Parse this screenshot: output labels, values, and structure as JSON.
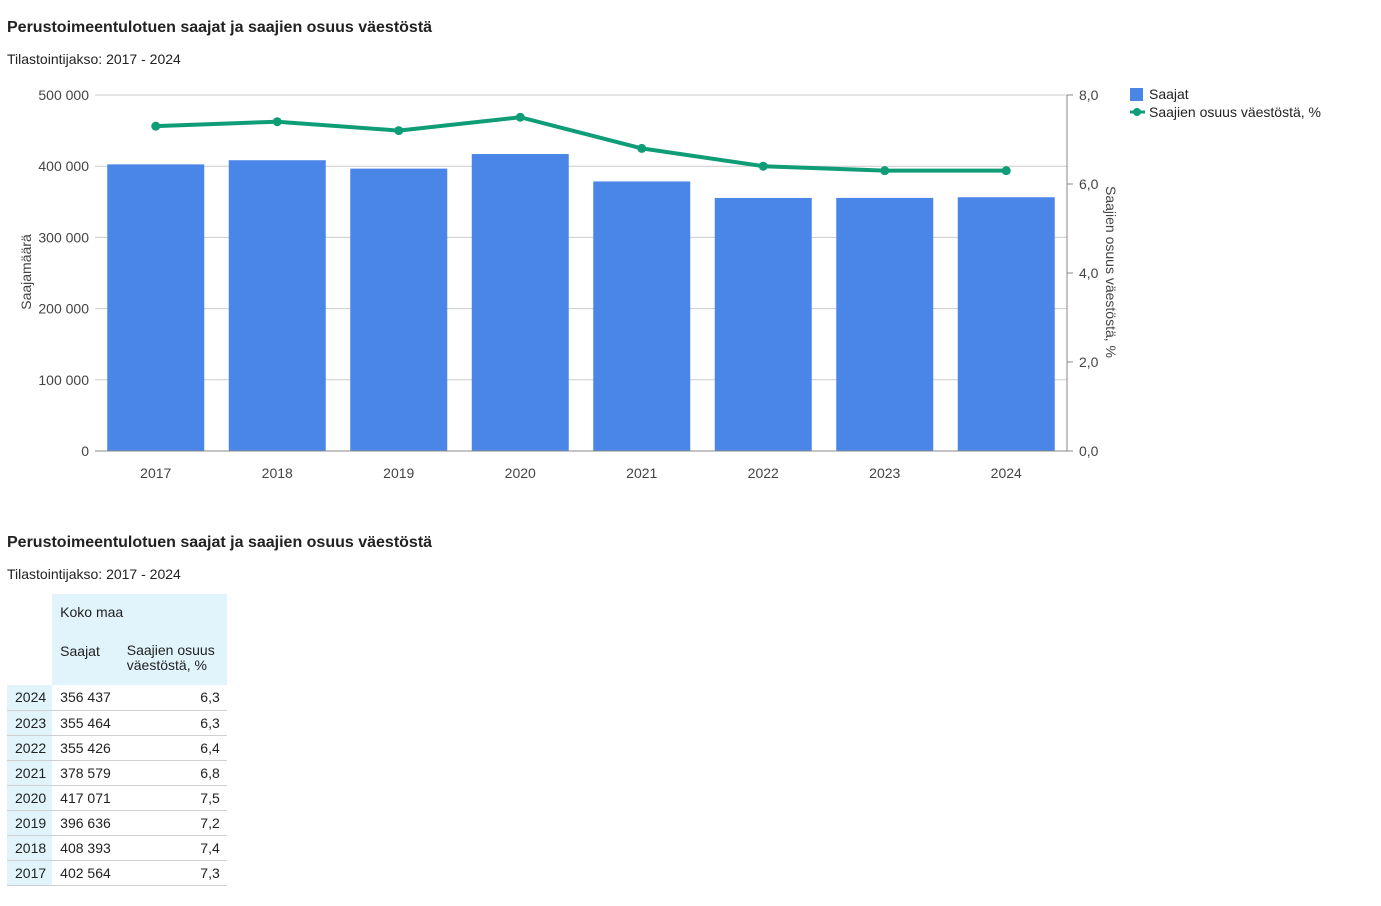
{
  "section1": {
    "title": "Perustoimeentulotuen saajat ja saajien osuus väestöstä",
    "subtitle": "Tilastointijakso: 2017 - 2024"
  },
  "section2": {
    "title": "Perustoimeentulotuen saajat ja saajien osuus väestöstä",
    "subtitle": "Tilastointijakso: 2017 - 2024"
  },
  "chart_data": {
    "type": "bar",
    "categories": [
      "2017",
      "2018",
      "2019",
      "2020",
      "2021",
      "2022",
      "2023",
      "2024"
    ],
    "series": [
      {
        "name": "Saajat",
        "type": "bar",
        "axis": "left",
        "color": "#4a86e8",
        "values": [
          402564,
          408393,
          396636,
          417071,
          378579,
          355426,
          355464,
          356437
        ]
      },
      {
        "name": "Saajien osuus väestöstä, %",
        "type": "line",
        "axis": "right",
        "color": "#0f9d78",
        "values": [
          7.3,
          7.4,
          7.2,
          7.5,
          6.8,
          6.4,
          6.3,
          6.3
        ]
      }
    ],
    "ylabel": "Saajamäärä",
    "y2label": "Saajien osuus väestöstä, %",
    "ylim": [
      0,
      500000
    ],
    "y2lim": [
      0,
      8
    ],
    "yticks": [
      "0",
      "100 000",
      "200 000",
      "300 000",
      "400 000",
      "500 000"
    ],
    "y2ticks": [
      "0,0",
      "2,0",
      "4,0",
      "6,0",
      "8,0"
    ],
    "grid": true,
    "legend": "top-right"
  },
  "table": {
    "group_header": "Koko maa",
    "col_headers": [
      "Saajat",
      "Saajien osuus väestöstä, %"
    ],
    "rows": [
      {
        "year": "2024",
        "saajat": "356 437",
        "osuus": "6,3"
      },
      {
        "year": "2023",
        "saajat": "355 464",
        "osuus": "6,3"
      },
      {
        "year": "2022",
        "saajat": "355 426",
        "osuus": "6,4"
      },
      {
        "year": "2021",
        "saajat": "378 579",
        "osuus": "6,8"
      },
      {
        "year": "2020",
        "saajat": "417 071",
        "osuus": "7,5"
      },
      {
        "year": "2019",
        "saajat": "396 636",
        "osuus": "7,2"
      },
      {
        "year": "2018",
        "saajat": "408 393",
        "osuus": "7,4"
      },
      {
        "year": "2017",
        "saajat": "402 564",
        "osuus": "7,3"
      }
    ]
  }
}
